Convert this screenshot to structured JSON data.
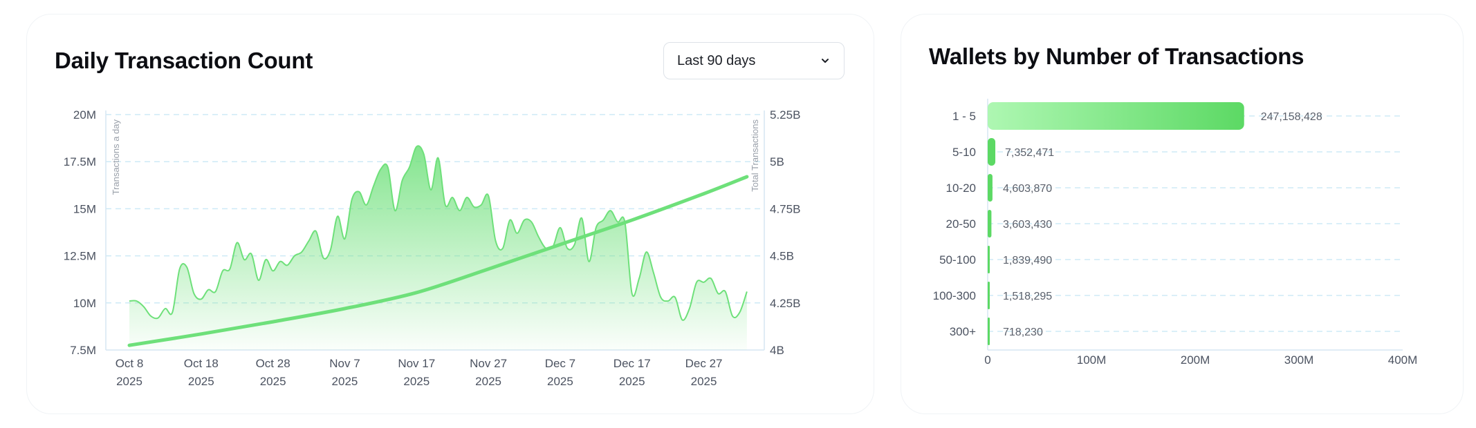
{
  "left_card": {
    "title": "Daily Transaction Count",
    "range_selector": {
      "selected": "Last 90 days",
      "icon": "chevron-down-icon"
    }
  },
  "right_card": {
    "title": "Wallets by Number of Transactions"
  },
  "colors": {
    "accent_green": "#6ee07a",
    "bar_green_light": "#aef7b2",
    "bar_green_dark": "#5cd964",
    "grid": "#cdeaf6",
    "axis": "#d6e6f2"
  },
  "chart_data": [
    {
      "type": "area",
      "title": "Daily Transaction Count",
      "x_tick_labels": [
        {
          "date": "Oct 8",
          "year": "2025"
        },
        {
          "date": "Oct 18",
          "year": "2025"
        },
        {
          "date": "Oct 28",
          "year": "2025"
        },
        {
          "date": "Nov 7",
          "year": "2025"
        },
        {
          "date": "Nov 17",
          "year": "2025"
        },
        {
          "date": "Nov 27",
          "year": "2025"
        },
        {
          "date": "Dec 7",
          "year": "2025"
        },
        {
          "date": "Dec 17",
          "year": "2025"
        },
        {
          "date": "Dec 27",
          "year": "2025"
        }
      ],
      "x_range": [
        "2025-10-08",
        "2026-01-05"
      ],
      "y_left": {
        "label": "Transactions a day",
        "range": [
          7500000,
          20000000
        ],
        "ticks": [
          {
            "value": 7500000,
            "label": "7.5M"
          },
          {
            "value": 10000000,
            "label": "10M"
          },
          {
            "value": 12500000,
            "label": "12.5M"
          },
          {
            "value": 15000000,
            "label": "15M"
          },
          {
            "value": 17500000,
            "label": "17.5M"
          },
          {
            "value": 20000000,
            "label": "20M"
          }
        ]
      },
      "y_right": {
        "label": "Total Transactions",
        "range": [
          4000000000,
          5250000000
        ],
        "ticks": [
          {
            "value": 4000000000,
            "label": "4B"
          },
          {
            "value": 4250000000,
            "label": "4.25B"
          },
          {
            "value": 4500000000,
            "label": "4.5B"
          },
          {
            "value": 4750000000,
            "label": "4.75B"
          },
          {
            "value": 5000000000,
            "label": "5B"
          },
          {
            "value": 5250000000,
            "label": "5.25B"
          }
        ]
      },
      "grid": true,
      "series": [
        {
          "axis": "left",
          "style": "area",
          "points": [
            [
              "2025-10-08",
              10100000
            ],
            [
              "2025-10-09",
              10100000
            ],
            [
              "2025-10-10",
              9800000
            ],
            [
              "2025-10-11",
              9300000
            ],
            [
              "2025-10-12",
              9200000
            ],
            [
              "2025-10-13",
              9700000
            ],
            [
              "2025-10-14",
              9500000
            ],
            [
              "2025-10-15",
              11800000
            ],
            [
              "2025-10-16",
              11900000
            ],
            [
              "2025-10-17",
              10500000
            ],
            [
              "2025-10-18",
              10200000
            ],
            [
              "2025-10-19",
              10700000
            ],
            [
              "2025-10-20",
              10600000
            ],
            [
              "2025-10-21",
              11700000
            ],
            [
              "2025-10-22",
              11800000
            ],
            [
              "2025-10-23",
              13200000
            ],
            [
              "2025-10-24",
              12300000
            ],
            [
              "2025-10-25",
              12600000
            ],
            [
              "2025-10-26",
              11200000
            ],
            [
              "2025-10-27",
              12300000
            ],
            [
              "2025-10-28",
              11700000
            ],
            [
              "2025-10-29",
              12200000
            ],
            [
              "2025-10-30",
              12000000
            ],
            [
              "2025-10-31",
              12500000
            ],
            [
              "2025-11-01",
              12700000
            ],
            [
              "2025-11-02",
              13300000
            ],
            [
              "2025-11-03",
              13800000
            ],
            [
              "2025-11-04",
              12400000
            ],
            [
              "2025-11-05",
              12800000
            ],
            [
              "2025-11-06",
              14600000
            ],
            [
              "2025-11-07",
              13400000
            ],
            [
              "2025-11-08",
              15500000
            ],
            [
              "2025-11-09",
              15900000
            ],
            [
              "2025-11-10",
              15200000
            ],
            [
              "2025-11-11",
              16200000
            ],
            [
              "2025-11-12",
              17100000
            ],
            [
              "2025-11-13",
              17200000
            ],
            [
              "2025-11-14",
              14900000
            ],
            [
              "2025-11-15",
              16500000
            ],
            [
              "2025-11-16",
              17200000
            ],
            [
              "2025-11-17",
              18300000
            ],
            [
              "2025-11-18",
              17900000
            ],
            [
              "2025-11-19",
              16000000
            ],
            [
              "2025-11-20",
              17700000
            ],
            [
              "2025-11-21",
              15200000
            ],
            [
              "2025-11-22",
              15600000
            ],
            [
              "2025-11-23",
              14900000
            ],
            [
              "2025-11-24",
              15600000
            ],
            [
              "2025-11-25",
              15100000
            ],
            [
              "2025-11-26",
              15200000
            ],
            [
              "2025-11-27",
              15700000
            ],
            [
              "2025-11-28",
              13300000
            ],
            [
              "2025-11-29",
              12900000
            ],
            [
              "2025-11-30",
              14400000
            ],
            [
              "2025-12-01",
              13700000
            ],
            [
              "2025-12-02",
              14400000
            ],
            [
              "2025-12-03",
              14300000
            ],
            [
              "2025-12-04",
              13500000
            ],
            [
              "2025-12-05",
              12900000
            ],
            [
              "2025-12-06",
              13000000
            ],
            [
              "2025-12-07",
              14000000
            ],
            [
              "2025-12-08",
              12900000
            ],
            [
              "2025-12-09",
              13100000
            ],
            [
              "2025-12-10",
              14500000
            ],
            [
              "2025-12-11",
              12200000
            ],
            [
              "2025-12-12",
              14000000
            ],
            [
              "2025-12-13",
              14400000
            ],
            [
              "2025-12-14",
              14900000
            ],
            [
              "2025-12-15",
              14300000
            ],
            [
              "2025-12-16",
              14300000
            ],
            [
              "2025-12-17",
              10500000
            ],
            [
              "2025-12-18",
              11300000
            ],
            [
              "2025-12-19",
              12700000
            ],
            [
              "2025-12-20",
              11600000
            ],
            [
              "2025-12-21",
              10300000
            ],
            [
              "2025-12-22",
              10100000
            ],
            [
              "2025-12-23",
              10300000
            ],
            [
              "2025-12-24",
              9100000
            ],
            [
              "2025-12-25",
              9700000
            ],
            [
              "2025-12-26",
              11100000
            ],
            [
              "2025-12-27",
              11100000
            ],
            [
              "2025-12-28",
              11300000
            ],
            [
              "2025-12-29",
              10500000
            ],
            [
              "2025-12-30",
              10600000
            ],
            [
              "2025-12-31",
              9300000
            ],
            [
              "2026-01-01",
              9500000
            ],
            [
              "2026-01-02",
              10600000
            ]
          ]
        },
        {
          "axis": "right",
          "style": "line",
          "points": [
            [
              "2025-10-08",
              4025000000
            ],
            [
              "2025-10-18",
              4085000000
            ],
            [
              "2025-10-28",
              4150000000
            ],
            [
              "2025-11-07",
              4220000000
            ],
            [
              "2025-11-17",
              4305000000
            ],
            [
              "2025-11-27",
              4430000000
            ],
            [
              "2025-12-07",
              4560000000
            ],
            [
              "2025-12-17",
              4690000000
            ],
            [
              "2025-12-27",
              4830000000
            ],
            [
              "2026-01-02",
              4920000000
            ]
          ]
        }
      ]
    },
    {
      "type": "bar",
      "orientation": "horizontal",
      "title": "Wallets by Number of Transactions",
      "categories": [
        "1 - 5",
        "5-10",
        "10-20",
        "20-50",
        "50-100",
        "100-300",
        "300+"
      ],
      "values": [
        247158428,
        7352471,
        4603870,
        3603430,
        1839490,
        1518295,
        718230
      ],
      "value_labels": [
        "247,158,428",
        "7,352,471",
        "4,603,870",
        "3,603,430",
        "1,839,490",
        "1,518,295",
        "718,230"
      ],
      "x_range": [
        0,
        400000000
      ],
      "x_ticks": [
        {
          "value": 0,
          "label": "0"
        },
        {
          "value": 100000000,
          "label": "100M"
        },
        {
          "value": 200000000,
          "label": "200M"
        },
        {
          "value": 300000000,
          "label": "300M"
        },
        {
          "value": 400000000,
          "label": "400M"
        }
      ],
      "grid": true
    }
  ]
}
